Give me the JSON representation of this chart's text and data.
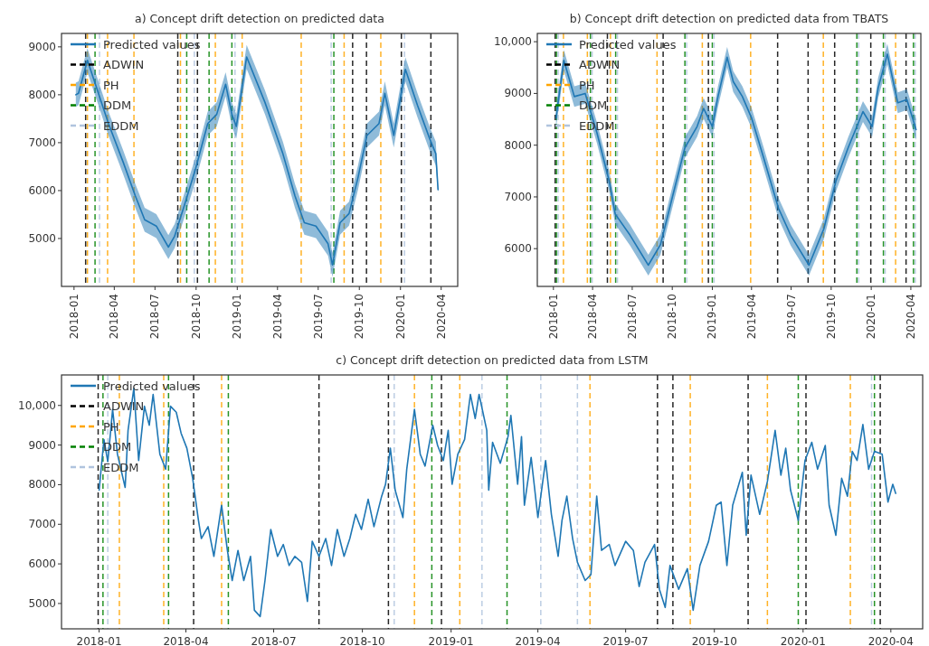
{
  "chart_data": [
    {
      "type": "line",
      "title": "a) Concept drift detection on predicted data",
      "legend": "top left",
      "xlim": [
        "2017-12-04",
        "2020-05-08"
      ],
      "ylim": [
        4000,
        9280
      ],
      "xticks": [
        "2018-01",
        "2018-04",
        "2018-07",
        "2018-10",
        "2019-01",
        "2019-04",
        "2019-07",
        "2019-10",
        "2020-01",
        "2020-04"
      ],
      "yticks": [
        5000,
        6000,
        7000,
        8000,
        9000
      ],
      "series": [
        {
          "name": "Predicted values",
          "color": "#1f77b4",
          "x": [
            "2018-01-05",
            "2018-01-11",
            "2018-01-31",
            "2018-02-20",
            "2018-03-19",
            "2018-04-21",
            "2018-05-18",
            "2018-06-08",
            "2018-07-04",
            "2018-07-31",
            "2018-08-14",
            "2018-09-03",
            "2018-09-30",
            "2018-10-27",
            "2018-11-16",
            "2018-12-06",
            "2018-12-20",
            "2018-12-30",
            "2019-01-12",
            "2019-01-22",
            "2019-03-04",
            "2019-04-13",
            "2019-05-10",
            "2019-05-31",
            "2019-06-26",
            "2019-07-23",
            "2019-08-02",
            "2019-08-19",
            "2019-09-08",
            "2019-09-28",
            "2019-10-18",
            "2019-11-14",
            "2019-11-27",
            "2019-12-17",
            "2020-01-12",
            "2020-02-08",
            "2020-03-06",
            "2020-03-20",
            "2020-03-25"
          ],
          "values": [
            8000,
            8030,
            8720,
            8160,
            7400,
            6590,
            5890,
            5390,
            5260,
            4820,
            5050,
            5640,
            6460,
            7400,
            7590,
            8220,
            7590,
            7340,
            8160,
            8790,
            7840,
            6770,
            5890,
            5330,
            5260,
            4890,
            4450,
            5330,
            5520,
            6270,
            7150,
            7400,
            8030,
            7150,
            8530,
            7780,
            7090,
            6770,
            6020
          ],
          "lower": [
            7750,
            7780,
            8470,
            7910,
            7150,
            6340,
            5640,
            5140,
            5010,
            4570,
            4800,
            5390,
            6210,
            7150,
            7340,
            7970,
            7340,
            7090,
            7910,
            8540,
            7590,
            6520,
            5640,
            5080,
            5010,
            4640,
            4200,
            5080,
            5270,
            6020,
            6900,
            7150,
            7780,
            6900,
            8280,
            7530,
            6840,
            6520,
            5950
          ],
          "upper": [
            8250,
            8280,
            8970,
            8410,
            7650,
            6840,
            6140,
            5640,
            5510,
            5070,
            5300,
            5890,
            6710,
            7650,
            7840,
            8470,
            7840,
            7590,
            8410,
            9040,
            8090,
            7020,
            6140,
            5580,
            5510,
            5140,
            4700,
            5580,
            5770,
            6520,
            7400,
            7650,
            8280,
            7400,
            8780,
            8030,
            7340,
            7020,
            6090
          ]
        }
      ],
      "ref_lines": [
        {
          "axis": "x",
          "value": "2018-01-27",
          "label": "ADWIN",
          "color": "#000000",
          "line_style": "dashed"
        },
        {
          "axis": "x",
          "value": "2018-08-21",
          "color": "#000000",
          "line_style": "dashed"
        },
        {
          "axis": "x",
          "value": "2018-10-04",
          "color": "#000000",
          "line_style": "dashed"
        },
        {
          "axis": "x",
          "value": "2019-09-16",
          "color": "#000000",
          "line_style": "dashed"
        },
        {
          "axis": "x",
          "value": "2019-10-17",
          "color": "#000000",
          "line_style": "dashed"
        },
        {
          "axis": "x",
          "value": "2020-01-03",
          "color": "#000000",
          "line_style": "dashed"
        },
        {
          "axis": "x",
          "value": "2020-03-09",
          "color": "#000000",
          "line_style": "dashed"
        },
        {
          "axis": "x",
          "value": "2018-01-31",
          "label": "PH",
          "color": "#ffa500",
          "line_style": "dashed"
        },
        {
          "axis": "x",
          "value": "2018-03-17",
          "color": "#ffa500",
          "line_style": "dashed"
        },
        {
          "axis": "x",
          "value": "2018-05-15",
          "color": "#ffa500",
          "line_style": "dashed"
        },
        {
          "axis": "x",
          "value": "2018-08-27",
          "color": "#ffa500",
          "line_style": "dashed"
        },
        {
          "axis": "x",
          "value": "2018-11-13",
          "color": "#ffa500",
          "line_style": "dashed"
        },
        {
          "axis": "x",
          "value": "2019-01-12",
          "color": "#ffa500",
          "line_style": "dashed"
        },
        {
          "axis": "x",
          "value": "2019-05-24",
          "color": "#ffa500",
          "line_style": "dashed"
        },
        {
          "axis": "x",
          "value": "2019-08-28",
          "color": "#ffa500",
          "line_style": "dashed"
        },
        {
          "axis": "x",
          "value": "2019-11-18",
          "color": "#ffa500",
          "line_style": "dashed"
        },
        {
          "axis": "x",
          "value": "2018-02-17",
          "label": "DDM",
          "color": "#008000",
          "line_style": "dashed"
        },
        {
          "axis": "x",
          "value": "2018-09-10",
          "color": "#008000",
          "line_style": "dashed"
        },
        {
          "axis": "x",
          "value": "2018-10-30",
          "color": "#008000",
          "line_style": "dashed"
        },
        {
          "axis": "x",
          "value": "2018-12-20",
          "color": "#008000",
          "line_style": "dashed"
        },
        {
          "axis": "x",
          "value": "2019-08-05",
          "color": "#008000",
          "line_style": "dashed"
        },
        {
          "axis": "x",
          "value": "2018-02-27",
          "label": "EDDM",
          "color": "#b0c4de",
          "line_style": "dashed"
        },
        {
          "axis": "x",
          "value": "2018-09-27",
          "color": "#b0c4de",
          "line_style": "dashed"
        },
        {
          "axis": "x",
          "value": "2018-12-27",
          "color": "#b0c4de",
          "line_style": "dashed"
        },
        {
          "axis": "x",
          "value": "2019-07-30",
          "color": "#b0c4de",
          "line_style": "dashed"
        },
        {
          "axis": "x",
          "value": "2020-01-10",
          "color": "#b0c4de",
          "line_style": "dashed"
        }
      ]
    },
    {
      "type": "line",
      "title": "b) Concept drift detection on predicted data from TBATS",
      "legend": "top left",
      "xlim": [
        "2017-11-25",
        "2020-04-24"
      ],
      "ylim": [
        5270,
        10160
      ],
      "xticks": [
        "2018-01",
        "2018-04",
        "2018-07",
        "2018-10",
        "2019-01",
        "2019-04",
        "2019-07",
        "2019-10",
        "2020-01",
        "2020-04"
      ],
      "yticks": [
        6000,
        7000,
        8000,
        9000,
        {
          "value": 10000,
          "label": "10,000"
        }
      ],
      "series": [
        {
          "name": "Predicted values",
          "color": "#1f77b4",
          "x": [
            "2018-01-07",
            "2018-01-25",
            "2018-02-18",
            "2018-03-15",
            "2018-04-11",
            "2018-05-09",
            "2018-05-23",
            "2018-06-26",
            "2018-08-07",
            "2018-09-04",
            "2018-10-02",
            "2018-10-30",
            "2018-11-27",
            "2018-12-12",
            "2019-01-01",
            "2019-01-14",
            "2019-02-04",
            "2019-02-18",
            "2019-03-11",
            "2019-04-01",
            "2019-04-28",
            "2019-06-02",
            "2019-06-30",
            "2019-08-11",
            "2019-09-14",
            "2019-10-12",
            "2019-11-09",
            "2019-12-13",
            "2020-01-03",
            "2020-01-17",
            "2020-02-07",
            "2020-03-02",
            "2020-03-23",
            "2020-04-13"
          ],
          "values": [
            8530,
            9640,
            8940,
            9000,
            8240,
            7310,
            6670,
            6260,
            5680,
            6080,
            7020,
            7950,
            8360,
            8710,
            8360,
            8940,
            9700,
            9230,
            8940,
            8530,
            7780,
            6780,
            6260,
            5680,
            6380,
            7310,
            7950,
            8650,
            8360,
            9110,
            9760,
            8820,
            8880,
            8300
          ],
          "lower": [
            8330,
            9440,
            8740,
            8800,
            8040,
            7110,
            6470,
            6060,
            5480,
            5880,
            6820,
            7750,
            8160,
            8510,
            8160,
            8740,
            9500,
            9030,
            8740,
            8330,
            7580,
            6580,
            6060,
            5480,
            6180,
            7110,
            7750,
            8450,
            8160,
            8910,
            9560,
            8620,
            8680,
            8100
          ],
          "upper": [
            8730,
            9840,
            9140,
            9200,
            8440,
            7510,
            6870,
            6460,
            5880,
            6280,
            7220,
            8150,
            8560,
            8910,
            8560,
            9140,
            9900,
            9430,
            9140,
            8730,
            7980,
            6980,
            6460,
            5880,
            6580,
            7510,
            8150,
            8850,
            8560,
            9310,
            9960,
            9020,
            9080,
            8500
          ]
        }
      ],
      "ref_lines": [
        {
          "axis": "x",
          "value": "2018-01-05",
          "label": "ADWIN",
          "color": "#000000",
          "line_style": "dashed"
        },
        {
          "axis": "x",
          "value": "2018-05-05",
          "color": "#000000",
          "line_style": "dashed"
        },
        {
          "axis": "x",
          "value": "2018-09-10",
          "color": "#000000",
          "line_style": "dashed"
        },
        {
          "axis": "x",
          "value": "2018-12-23",
          "color": "#000000",
          "line_style": "dashed"
        },
        {
          "axis": "x",
          "value": "2019-05-31",
          "color": "#000000",
          "line_style": "dashed"
        },
        {
          "axis": "x",
          "value": "2019-08-09",
          "color": "#000000",
          "line_style": "dashed"
        },
        {
          "axis": "x",
          "value": "2019-10-09",
          "color": "#000000",
          "line_style": "dashed"
        },
        {
          "axis": "x",
          "value": "2019-12-31",
          "color": "#000000",
          "line_style": "dashed"
        },
        {
          "axis": "x",
          "value": "2020-03-21",
          "color": "#000000",
          "line_style": "dashed"
        },
        {
          "axis": "x",
          "value": "2018-01-24",
          "label": "PH",
          "color": "#ffa500",
          "line_style": "dashed"
        },
        {
          "axis": "x",
          "value": "2018-03-20",
          "color": "#ffa500",
          "line_style": "dashed"
        },
        {
          "axis": "x",
          "value": "2018-05-12",
          "color": "#ffa500",
          "line_style": "dashed"
        },
        {
          "axis": "x",
          "value": "2018-08-27",
          "color": "#ffa500",
          "line_style": "dashed"
        },
        {
          "axis": "x",
          "value": "2018-12-09",
          "color": "#ffa500",
          "line_style": "dashed"
        },
        {
          "axis": "x",
          "value": "2019-03-30",
          "color": "#ffa500",
          "line_style": "dashed"
        },
        {
          "axis": "x",
          "value": "2019-09-13",
          "color": "#ffa500",
          "line_style": "dashed"
        },
        {
          "axis": "x",
          "value": "2020-02-26",
          "color": "#ffa500",
          "line_style": "dashed"
        },
        {
          "axis": "x",
          "value": "2018-01-08",
          "label": "DDM",
          "color": "#008000",
          "line_style": "dashed"
        },
        {
          "axis": "x",
          "value": "2018-03-27",
          "color": "#008000",
          "line_style": "dashed"
        },
        {
          "axis": "x",
          "value": "2018-05-24",
          "color": "#008000",
          "line_style": "dashed"
        },
        {
          "axis": "x",
          "value": "2018-10-30",
          "color": "#008000",
          "line_style": "dashed"
        },
        {
          "axis": "x",
          "value": "2019-01-01",
          "color": "#008000",
          "line_style": "dashed"
        },
        {
          "axis": "x",
          "value": "2019-11-29",
          "color": "#008000",
          "line_style": "dashed"
        },
        {
          "axis": "x",
          "value": "2020-01-29",
          "color": "#008000",
          "line_style": "dashed"
        },
        {
          "axis": "x",
          "value": "2020-04-07",
          "color": "#008000",
          "line_style": "dashed"
        },
        {
          "axis": "x",
          "value": "2018-01-12",
          "label": "EDDM",
          "color": "#b0c4de",
          "line_style": "dashed"
        },
        {
          "axis": "x",
          "value": "2018-03-31",
          "color": "#b0c4de",
          "line_style": "dashed"
        },
        {
          "axis": "x",
          "value": "2018-05-28",
          "color": "#b0c4de",
          "line_style": "dashed"
        },
        {
          "axis": "x",
          "value": "2018-11-03",
          "color": "#b0c4de",
          "line_style": "dashed"
        },
        {
          "axis": "x",
          "value": "2019-01-05",
          "color": "#b0c4de",
          "line_style": "dashed"
        },
        {
          "axis": "x",
          "value": "2019-12-03",
          "color": "#b0c4de",
          "line_style": "dashed"
        },
        {
          "axis": "x",
          "value": "2020-02-02",
          "color": "#b0c4de",
          "line_style": "dashed"
        },
        {
          "axis": "x",
          "value": "2020-04-11",
          "color": "#b0c4de",
          "line_style": "dashed"
        }
      ]
    },
    {
      "type": "line",
      "title": "c) Concept drift detection on predicted data from LSTM",
      "legend": "top left",
      "xlim": [
        "2017-11-23",
        "2020-05-04"
      ],
      "ylim": [
        4360,
        10770
      ],
      "xticks": [
        "2018-01",
        "2018-04",
        "2018-07",
        "2018-10",
        "2019-01",
        "2019-04",
        "2019-07",
        "2019-10",
        "2020-01",
        "2020-04"
      ],
      "yticks": [
        5000,
        6000,
        7000,
        8000,
        9000,
        {
          "value": 10000,
          "label": "10,000"
        }
      ],
      "series": [
        {
          "name": "Predicted values",
          "color": "#1f77b4",
          "x": [
            "2018-01-01",
            "2018-01-06",
            "2018-01-10",
            "2018-01-15",
            "2018-01-20",
            "2018-01-28",
            "2018-01-31",
            "2018-02-06",
            "2018-02-11",
            "2018-02-17",
            "2018-02-22",
            "2018-02-26",
            "2018-03-05",
            "2018-03-11",
            "2018-03-16",
            "2018-03-22",
            "2018-03-27",
            "2018-04-02",
            "2018-04-08",
            "2018-04-14",
            "2018-04-17",
            "2018-04-24",
            "2018-04-30",
            "2018-05-08",
            "2018-05-14",
            "2018-05-19",
            "2018-05-25",
            "2018-05-31",
            "2018-06-07",
            "2018-06-11",
            "2018-06-17",
            "2018-06-22",
            "2018-06-28",
            "2018-07-05",
            "2018-07-11",
            "2018-07-17",
            "2018-07-23",
            "2018-07-30",
            "2018-08-05",
            "2018-08-10",
            "2018-08-17",
            "2018-08-24",
            "2018-08-30",
            "2018-09-05",
            "2018-09-12",
            "2018-09-18",
            "2018-09-24",
            "2018-09-30",
            "2018-10-07",
            "2018-10-13",
            "2018-10-21",
            "2018-10-25",
            "2018-10-30",
            "2018-11-04",
            "2018-11-12",
            "2018-11-16",
            "2018-11-24",
            "2018-11-30",
            "2018-12-05",
            "2018-12-13",
            "2018-12-18",
            "2018-12-24",
            "2018-12-29",
            "2019-01-02",
            "2019-01-08",
            "2019-01-15",
            "2019-01-21",
            "2019-01-26",
            "2019-01-30",
            "2019-02-07",
            "2019-02-09",
            "2019-02-13",
            "2019-02-21",
            "2019-03-01",
            "2019-03-04",
            "2019-03-11",
            "2019-03-15",
            "2019-03-18",
            "2019-03-25",
            "2019-04-01",
            "2019-04-09",
            "2019-04-15",
            "2019-04-22",
            "2019-04-26",
            "2019-05-01",
            "2019-05-07",
            "2019-05-12",
            "2019-05-20",
            "2019-05-26",
            "2019-06-01",
            "2019-06-06",
            "2019-06-14",
            "2019-06-20",
            "2019-07-01",
            "2019-07-09",
            "2019-07-15",
            "2019-07-21",
            "2019-07-31",
            "2019-08-05",
            "2019-08-11",
            "2019-08-16",
            "2019-08-25",
            "2019-09-03",
            "2019-09-09",
            "2019-09-16",
            "2019-09-25",
            "2019-10-03",
            "2019-10-08",
            "2019-10-14",
            "2019-10-20",
            "2019-10-30",
            "2019-11-03",
            "2019-11-08",
            "2019-11-17",
            "2019-11-25",
            "2019-12-03",
            "2019-12-09",
            "2019-12-14",
            "2019-12-19",
            "2019-12-27",
            "2020-01-03",
            "2020-01-10",
            "2020-01-16",
            "2020-01-24",
            "2020-01-28",
            "2020-02-04",
            "2020-02-10",
            "2020-02-16",
            "2020-02-21",
            "2020-02-26",
            "2020-03-03",
            "2020-03-09",
            "2020-03-15",
            "2020-03-23",
            "2020-03-29",
            "2020-04-03",
            "2020-04-06"
          ],
          "values": [
            7860,
            9140,
            8580,
            9900,
            8770,
            7930,
            9370,
            10430,
            8610,
            9980,
            9500,
            10280,
            8770,
            8390,
            9980,
            9830,
            9300,
            8920,
            8160,
            7100,
            6640,
            6940,
            6190,
            7480,
            6340,
            5580,
            6340,
            5580,
            6190,
            4830,
            4670,
            5580,
            6870,
            6190,
            6490,
            5960,
            6190,
            6040,
            5050,
            6570,
            6190,
            6640,
            5960,
            6870,
            6190,
            6640,
            7250,
            6870,
            7630,
            6940,
            7710,
            8010,
            8920,
            7860,
            7170,
            8390,
            9900,
            8770,
            8470,
            9500,
            8990,
            8610,
            9370,
            8010,
            8770,
            9140,
            10280,
            9670,
            10280,
            9370,
            7860,
            9070,
            8540,
            9210,
            9750,
            8010,
            9210,
            7480,
            8690,
            7170,
            8610,
            7250,
            6190,
            7100,
            7710,
            6640,
            6040,
            5580,
            5730,
            7710,
            6340,
            6490,
            5960,
            6570,
            6340,
            5430,
            6040,
            6490,
            5360,
            4900,
            5960,
            5360,
            5880,
            4830,
            5960,
            6570,
            7480,
            7560,
            5960,
            7480,
            8310,
            6720,
            8240,
            7250,
            8080,
            9370,
            8240,
            8920,
            7860,
            7100,
            8610,
            9070,
            8390,
            8990,
            7480,
            6720,
            8160,
            7710,
            8840,
            8610,
            9520,
            8390,
            8840,
            8770,
            7560,
            8010,
            7780
          ]
        }
      ],
      "ref_lines": [
        {
          "axis": "x",
          "value": "2017-12-31",
          "label": "ADWIN",
          "color": "#000000",
          "line_style": "dashed"
        },
        {
          "axis": "x",
          "value": "2018-04-09",
          "color": "#000000",
          "line_style": "dashed"
        },
        {
          "axis": "x",
          "value": "2018-08-17",
          "color": "#000000",
          "line_style": "dashed"
        },
        {
          "axis": "x",
          "value": "2018-10-28",
          "color": "#000000",
          "line_style": "dashed"
        },
        {
          "axis": "x",
          "value": "2018-12-22",
          "color": "#000000",
          "line_style": "dashed"
        },
        {
          "axis": "x",
          "value": "2019-08-03",
          "color": "#000000",
          "line_style": "dashed"
        },
        {
          "axis": "x",
          "value": "2019-08-19",
          "color": "#000000",
          "line_style": "dashed"
        },
        {
          "axis": "x",
          "value": "2019-11-05",
          "color": "#000000",
          "line_style": "dashed"
        },
        {
          "axis": "x",
          "value": "2020-01-04",
          "color": "#000000",
          "line_style": "dashed"
        },
        {
          "axis": "x",
          "value": "2020-03-21",
          "color": "#000000",
          "line_style": "dashed"
        },
        {
          "axis": "x",
          "value": "2018-01-22",
          "label": "PH",
          "color": "#ffa500",
          "line_style": "dashed"
        },
        {
          "axis": "x",
          "value": "2018-03-09",
          "color": "#ffa500",
          "line_style": "dashed"
        },
        {
          "axis": "x",
          "value": "2018-05-08",
          "color": "#ffa500",
          "line_style": "dashed"
        },
        {
          "axis": "x",
          "value": "2018-11-24",
          "color": "#ffa500",
          "line_style": "dashed"
        },
        {
          "axis": "x",
          "value": "2019-01-10",
          "color": "#ffa500",
          "line_style": "dashed"
        },
        {
          "axis": "x",
          "value": "2019-05-25",
          "color": "#ffa500",
          "line_style": "dashed"
        },
        {
          "axis": "x",
          "value": "2019-09-06",
          "color": "#ffa500",
          "line_style": "dashed"
        },
        {
          "axis": "x",
          "value": "2019-11-25",
          "color": "#ffa500",
          "line_style": "dashed"
        },
        {
          "axis": "x",
          "value": "2020-02-19",
          "color": "#ffa500",
          "line_style": "dashed"
        },
        {
          "axis": "x",
          "value": "2018-01-05",
          "label": "DDM",
          "color": "#008000",
          "line_style": "dashed"
        },
        {
          "axis": "x",
          "value": "2018-03-14",
          "color": "#008000",
          "line_style": "dashed"
        },
        {
          "axis": "x",
          "value": "2018-05-15",
          "color": "#008000",
          "line_style": "dashed"
        },
        {
          "axis": "x",
          "value": "2018-12-12",
          "color": "#008000",
          "line_style": "dashed"
        },
        {
          "axis": "x",
          "value": "2019-02-28",
          "color": "#008000",
          "line_style": "dashed"
        },
        {
          "axis": "x",
          "value": "2019-12-27",
          "color": "#008000",
          "line_style": "dashed"
        },
        {
          "axis": "x",
          "value": "2020-03-15",
          "color": "#008000",
          "line_style": "dashed"
        },
        {
          "axis": "x",
          "value": "2018-01-10",
          "label": "EDDM",
          "color": "#b0c4de",
          "line_style": "dashed"
        },
        {
          "axis": "x",
          "value": "2018-11-03",
          "color": "#b0c4de",
          "line_style": "dashed"
        },
        {
          "axis": "x",
          "value": "2019-02-02",
          "color": "#b0c4de",
          "line_style": "dashed"
        },
        {
          "axis": "x",
          "value": "2019-04-04",
          "color": "#b0c4de",
          "line_style": "dashed"
        },
        {
          "axis": "x",
          "value": "2019-05-12",
          "color": "#b0c4de",
          "line_style": "dashed"
        },
        {
          "axis": "x",
          "value": "2020-03-12",
          "color": "#b0c4de",
          "line_style": "dashed"
        }
      ]
    }
  ]
}
